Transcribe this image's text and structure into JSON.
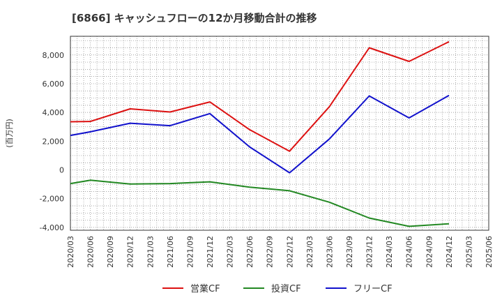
{
  "chart_data": {
    "type": "line",
    "title": "[6866]  キャッシュフローの12か月移動合計の推移",
    "ylabel": "(百万円)",
    "xlabel": "",
    "ylim": [
      -4200,
      9300
    ],
    "yticks": [
      -4000,
      -2000,
      0,
      2000,
      4000,
      6000,
      8000
    ],
    "ytick_labels": [
      "-4,000",
      "-2,000",
      "0",
      "2,000",
      "4,000",
      "6,000",
      "8,000"
    ],
    "categories": [
      "2020/03",
      "2020/06",
      "2020/09",
      "2020/12",
      "2021/03",
      "2021/06",
      "2021/09",
      "2021/12",
      "2022/03",
      "2022/06",
      "2022/09",
      "2022/12",
      "2023/03",
      "2023/06",
      "2023/09",
      "2023/12",
      "2024/03",
      "2024/06",
      "2024/09",
      "2024/12",
      "2025/03",
      "2025/06"
    ],
    "grid": true,
    "legend_position": "bottom",
    "series": [
      {
        "name": "営業CF",
        "color": "#dd1111",
        "values": [
          3350,
          3370,
          null,
          4250,
          null,
          4030,
          null,
          4730,
          null,
          2800,
          null,
          1300,
          null,
          4400,
          null,
          8500,
          null,
          7550,
          null,
          8920,
          null,
          null
        ]
      },
      {
        "name": "投資CF",
        "color": "#228822",
        "values": [
          -950,
          -720,
          null,
          -980,
          null,
          -950,
          null,
          -830,
          null,
          -1200,
          null,
          -1450,
          null,
          -2250,
          null,
          -3350,
          null,
          -3930,
          null,
          -3750,
          null,
          null
        ]
      },
      {
        "name": "フリーCF",
        "color": "#1111cc",
        "values": [
          2400,
          2650,
          null,
          3250,
          null,
          3080,
          null,
          3920,
          null,
          1600,
          null,
          -200,
          null,
          2150,
          null,
          5150,
          null,
          3620,
          null,
          5180,
          null,
          null
        ]
      }
    ]
  }
}
